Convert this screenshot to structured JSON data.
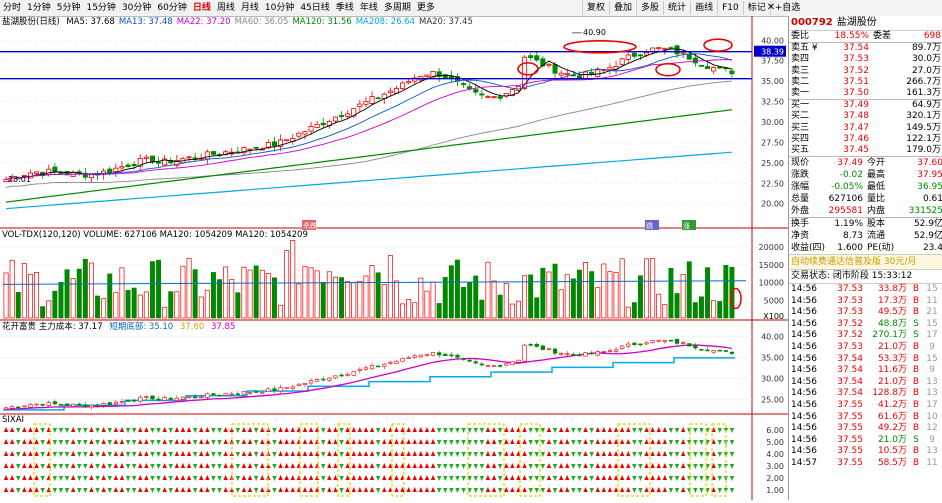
{
  "toolbar": {
    "periods": [
      "分时",
      "1分钟",
      "5分钟",
      "15分钟",
      "30分钟",
      "60分钟",
      "日线",
      "周线",
      "月线",
      "10分钟",
      "45日线",
      "季线",
      "年线",
      "多周期",
      "更多"
    ],
    "active_period": "日线",
    "right_buttons": [
      "复权",
      "叠加",
      "多股",
      "统计",
      "画线",
      "F10",
      "标记",
      "+自选"
    ],
    "close": "✕"
  },
  "main": {
    "title": "盐湖股份(日线)",
    "ma": [
      {
        "label": "MA5: 37.68",
        "color": "#000000"
      },
      {
        "label": "MA13: 37.48",
        "color": "#0a55c8"
      },
      {
        "label": "MA22: 37.20",
        "color": "#cc00cc"
      },
      {
        "label": "MA60: 36.05",
        "color": "#888888"
      },
      {
        "label": "MA120: 31.56",
        "color": "#008800"
      },
      {
        "label": "MA208: 26.64",
        "color": "#00aadd"
      },
      {
        "label": "MA20: 37.45",
        "color": "#333333"
      }
    ],
    "price_axis": [
      "40.00",
      "37.50",
      "35.00",
      "32.50",
      "30.00",
      "27.50",
      "25.00",
      "22.50",
      "20.00"
    ],
    "current_tag": "38.39",
    "high_label": "40.90",
    "low_label": "23.01",
    "markers": [
      "杀跌",
      "跳",
      "涨"
    ]
  },
  "volume": {
    "legend": "VOL-TDX(120,120)  VOLUME: 627106  MA120: 1054209  MA120: 1054209",
    "axis": [
      "20000",
      "15000",
      "10000",
      "5000"
    ],
    "unit": "X100"
  },
  "cost": {
    "legend_name": "花开富贵  主力成本: 37.17",
    "legend_b": "短期底部: 35.10",
    "legend_c": "37.60",
    "legend_d": "37.85",
    "axis": [
      "40.00",
      "35.00",
      "30.00",
      "25.00"
    ]
  },
  "sixai": {
    "legend": "SIXAI",
    "axis": [
      "6.00",
      "5.00",
      "4.00",
      "3.00",
      "2.00",
      "1.00"
    ]
  },
  "panel": {
    "code": "000792",
    "name": "盐湖股份",
    "weibi_label": "委比",
    "weibi_val": "18.55%",
    "weicha_label": "委差",
    "weicha_val": "698",
    "sells": [
      {
        "l": "卖五",
        "y": "¥",
        "p": "37.54",
        "v": "89.7万"
      },
      {
        "l": "卖四",
        "y": "",
        "p": "37.53",
        "v": "30.0万"
      },
      {
        "l": "卖三",
        "y": "",
        "p": "37.52",
        "v": "27.0万"
      },
      {
        "l": "卖二",
        "y": "",
        "p": "37.51",
        "v": "266.7万"
      },
      {
        "l": "卖一",
        "y": "",
        "p": "37.50",
        "v": "161.3万"
      }
    ],
    "buys": [
      {
        "l": "买一",
        "p": "37.49",
        "v": "64.9万"
      },
      {
        "l": "买二",
        "p": "37.48",
        "v": "320.1万"
      },
      {
        "l": "买三",
        "p": "37.47",
        "v": "149.5万"
      },
      {
        "l": "买四",
        "p": "37.46",
        "v": "122.1万"
      },
      {
        "l": "买五",
        "p": "37.45",
        "v": "179.0万"
      }
    ],
    "quote": [
      {
        "a": "现价",
        "b": "37.49",
        "c": "今开",
        "d": "37.60",
        "bc": "red",
        "dc": "red"
      },
      {
        "a": "涨跌",
        "b": "-0.02",
        "c": "最高",
        "d": "37.95",
        "bc": "green",
        "dc": "red"
      },
      {
        "a": "涨幅",
        "b": "-0.05%",
        "c": "最低",
        "d": "36.95",
        "bc": "green",
        "dc": "green"
      },
      {
        "a": "总量",
        "b": "627106",
        "c": "量比",
        "d": "0.61",
        "bc": "black",
        "dc": "black"
      },
      {
        "a": "外盘",
        "b": "295581",
        "c": "内盘",
        "d": "331525",
        "bc": "red",
        "dc": "green"
      }
    ],
    "quote2": [
      {
        "a": "换手",
        "b": "1.19%",
        "c": "股本",
        "d": "52.9亿"
      },
      {
        "a": "净资",
        "b": "8.73",
        "c": "流通",
        "d": "52.9亿"
      },
      {
        "a": "收益(四)",
        "b": "1.600",
        "c": "PE(动)",
        "d": "23.4"
      }
    ],
    "banner": "自动续费通达信普及版  30元/月",
    "status": "交易状态: 闭市阶段  15:33:12",
    "ticks": [
      {
        "t": "14:56",
        "p": "37.53",
        "v": "33.8万",
        "f": "B",
        "m": "15"
      },
      {
        "t": "14:56",
        "p": "37.53",
        "v": "17.3万",
        "f": "B",
        "m": "11"
      },
      {
        "t": "14:56",
        "p": "37.53",
        "v": "49.5万",
        "f": "B",
        "m": "21"
      },
      {
        "t": "14:56",
        "p": "37.52",
        "v": "48.8万",
        "f": "S",
        "m": "15"
      },
      {
        "t": "14:56",
        "p": "37.52",
        "v": "270.1万",
        "f": "S",
        "m": "17"
      },
      {
        "t": "14:56",
        "p": "37.53",
        "v": "21.0万",
        "f": "B",
        "m": "9"
      },
      {
        "t": "14:56",
        "p": "37.54",
        "v": "53.3万",
        "f": "B",
        "m": "15"
      },
      {
        "t": "14:56",
        "p": "37.54",
        "v": "11.6万",
        "f": "B",
        "m": "9"
      },
      {
        "t": "14:56",
        "p": "37.54",
        "v": "21.0万",
        "f": "B",
        "m": "13"
      },
      {
        "t": "14:56",
        "p": "37.54",
        "v": "128.8万",
        "f": "B",
        "m": "13"
      },
      {
        "t": "14:56",
        "p": "37.55",
        "v": "41.2万",
        "f": "B",
        "m": "17"
      },
      {
        "t": "14:56",
        "p": "37.55",
        "v": "61.6万",
        "f": "B",
        "m": "10"
      },
      {
        "t": "14:56",
        "p": "37.55",
        "v": "49.2万",
        "f": "B",
        "m": "12"
      },
      {
        "t": "14:56",
        "p": "37.55",
        "v": "21.0万",
        "f": "S",
        "m": "9"
      },
      {
        "t": "14:56",
        "p": "37.55",
        "v": "10.5万",
        "f": "B",
        "m": "13"
      },
      {
        "t": "14:57",
        "p": "37.55",
        "v": "58.5万",
        "f": "B",
        "m": "11"
      }
    ]
  }
}
